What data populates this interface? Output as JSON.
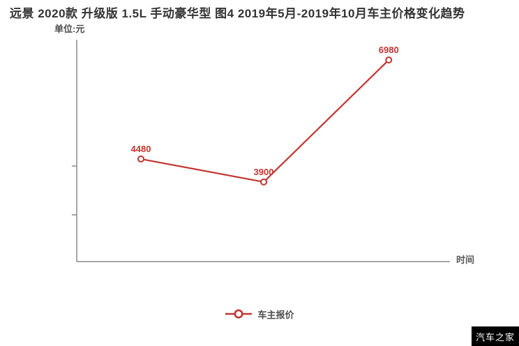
{
  "watermark": "汽车之家",
  "colors": {
    "series": "#c23531",
    "axis": "#8a8a8a",
    "title": "#333333",
    "label": "#c23531",
    "watermark_bg": "#000000",
    "watermark_fg": "#ffffff"
  },
  "chart_data": {
    "type": "line",
    "title": "远景 2020款 升级版 1.5L 手动豪华型 图4 2019年5月-2019年10月车主价格变化趋势",
    "unit_label": "单位:元",
    "xlabel": "时间",
    "ylabel": "",
    "ylim": [
      1890,
      7490
    ],
    "grid": false,
    "legend_position": "bottom-center",
    "series": [
      {
        "name": "车主报价",
        "color": "#c23531",
        "points": [
          {
            "x_frac": 0.172,
            "value": 4480,
            "label": "4480"
          },
          {
            "x_frac": 0.501,
            "value": 3900,
            "label": "3900"
          },
          {
            "x_frac": 0.836,
            "value": 6980,
            "label": "6980"
          }
        ]
      }
    ]
  }
}
